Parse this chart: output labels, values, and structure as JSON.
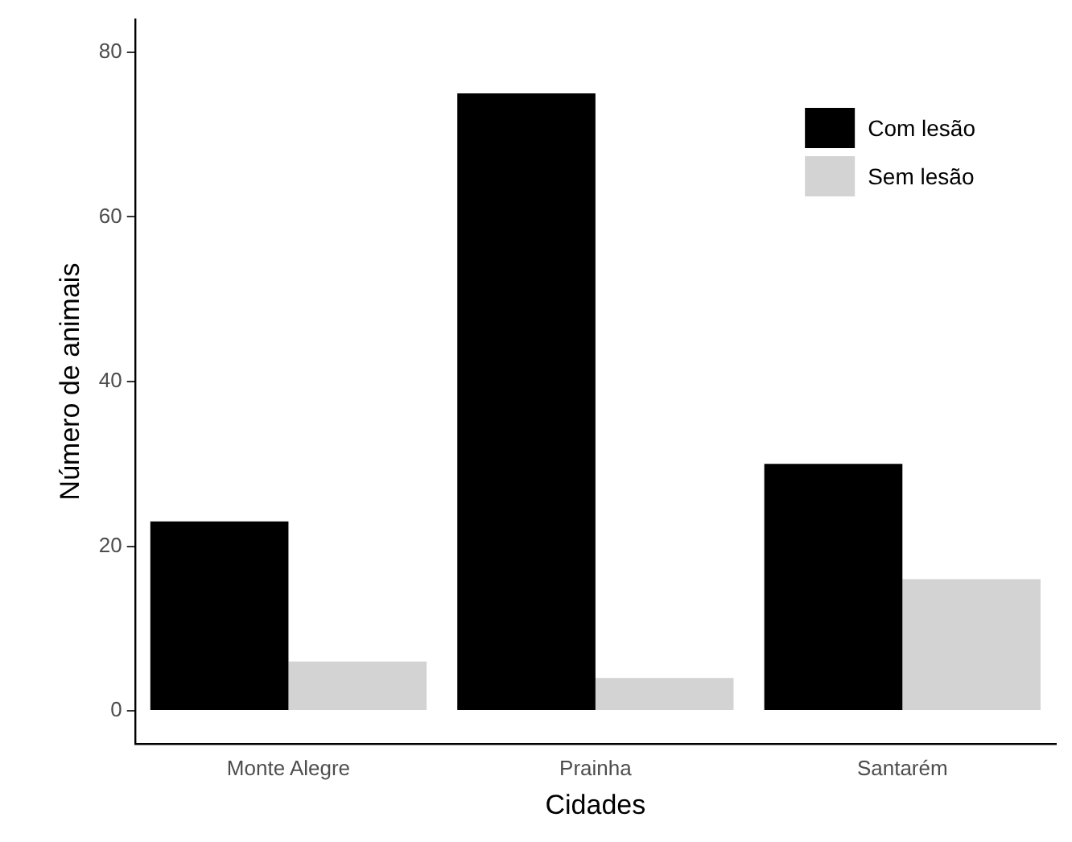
{
  "chart_data": {
    "type": "bar",
    "xlabel": "Cidades",
    "ylabel": "Número de animais",
    "categories": [
      "Monte Alegre",
      "Prainha",
      "Santarém"
    ],
    "series": [
      {
        "name": "Com lesão",
        "color": "#000000",
        "values": [
          23,
          75,
          30
        ]
      },
      {
        "name": "Sem lesão",
        "color": "#d3d3d3",
        "values": [
          6,
          4,
          16
        ]
      }
    ],
    "ylim": [
      -4,
      84
    ],
    "yticks": [
      0,
      20,
      40,
      60,
      80
    ],
    "grid": false,
    "legend": "top right"
  }
}
